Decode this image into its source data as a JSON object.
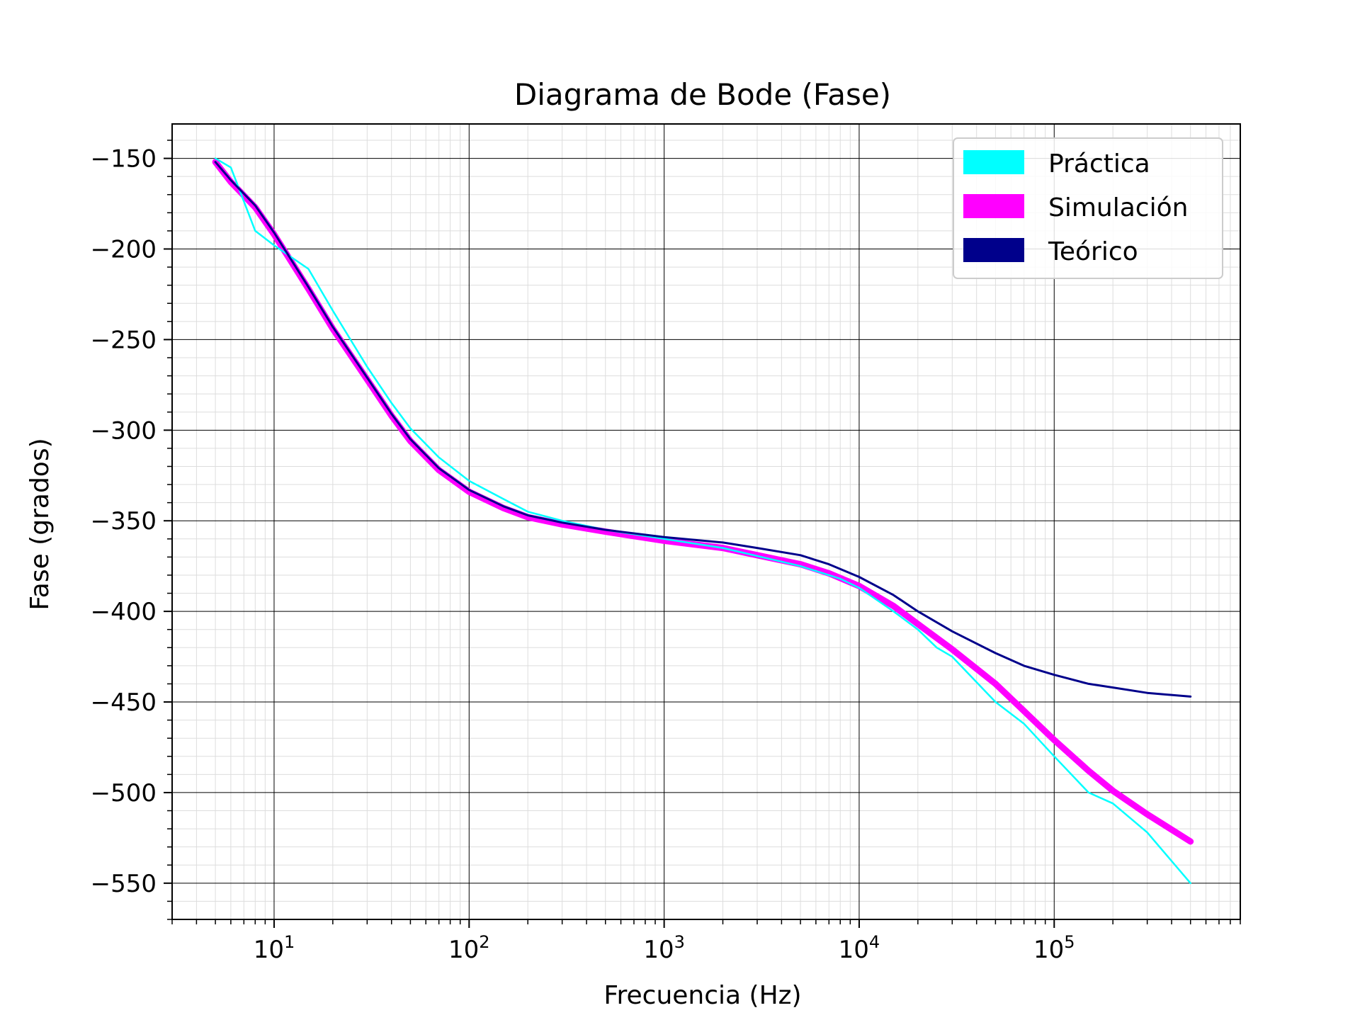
{
  "chart_data": {
    "type": "line",
    "title": "Diagrama de Bode (Fase)",
    "xlabel": "Frecuencia (Hz)",
    "ylabel": "Fase (grados)",
    "xscale": "log",
    "xlim": [
      3,
      900000
    ],
    "ylim": [
      -570,
      -131
    ],
    "yticks": [
      -150,
      -200,
      -250,
      -300,
      -350,
      -400,
      -450,
      -500,
      -550
    ],
    "ytick_labels": [
      "−150",
      "−200",
      "−250",
      "−300",
      "−350",
      "−400",
      "−450",
      "−500",
      "−550"
    ],
    "xticks": [
      {
        "value": 10,
        "base": "10",
        "exp": "1"
      },
      {
        "value": 100,
        "base": "10",
        "exp": "2"
      },
      {
        "value": 1000,
        "base": "10",
        "exp": "3"
      },
      {
        "value": 10000,
        "base": "10",
        "exp": "4"
      },
      {
        "value": 100000,
        "base": "10",
        "exp": "5"
      }
    ],
    "grid": "major and minor",
    "legend_position": "top-right",
    "series": [
      {
        "name": "Práctica",
        "color": "#00ffff",
        "linewidth": "thin",
        "points": [
          [
            5,
            -150
          ],
          [
            6,
            -155
          ],
          [
            8,
            -190
          ],
          [
            10,
            -198
          ],
          [
            15,
            -211
          ],
          [
            20,
            -234
          ],
          [
            30,
            -265
          ],
          [
            40,
            -285
          ],
          [
            50,
            -299
          ],
          [
            70,
            -315
          ],
          [
            100,
            -328
          ],
          [
            150,
            -338
          ],
          [
            200,
            -345
          ],
          [
            300,
            -350
          ],
          [
            500,
            -355
          ],
          [
            1000,
            -360
          ],
          [
            2000,
            -365
          ],
          [
            5000,
            -375
          ],
          [
            8000,
            -382
          ],
          [
            10000,
            -387
          ],
          [
            15000,
            -400
          ],
          [
            20000,
            -410
          ],
          [
            25000,
            -420
          ],
          [
            30000,
            -425
          ],
          [
            50000,
            -450
          ],
          [
            70000,
            -462
          ],
          [
            100000,
            -480
          ],
          [
            150000,
            -500
          ],
          [
            200000,
            -506
          ],
          [
            300000,
            -522
          ],
          [
            500000,
            -550
          ]
        ]
      },
      {
        "name": "Simulación",
        "color": "#ff00ff",
        "linewidth": "thick",
        "points": [
          [
            5,
            -152
          ],
          [
            6,
            -163
          ],
          [
            8,
            -177
          ],
          [
            10,
            -192
          ],
          [
            15,
            -222
          ],
          [
            20,
            -244
          ],
          [
            30,
            -272
          ],
          [
            40,
            -292
          ],
          [
            50,
            -306
          ],
          [
            70,
            -322
          ],
          [
            100,
            -334
          ],
          [
            150,
            -343
          ],
          [
            200,
            -348
          ],
          [
            300,
            -352
          ],
          [
            500,
            -356
          ],
          [
            1000,
            -361
          ],
          [
            2000,
            -365
          ],
          [
            3000,
            -369
          ],
          [
            5000,
            -374
          ],
          [
            7000,
            -379
          ],
          [
            10000,
            -386
          ],
          [
            15000,
            -397
          ],
          [
            20000,
            -407
          ],
          [
            30000,
            -421
          ],
          [
            50000,
            -440
          ],
          [
            70000,
            -455
          ],
          [
            100000,
            -471
          ],
          [
            150000,
            -488
          ],
          [
            200000,
            -499
          ],
          [
            300000,
            -512
          ],
          [
            500000,
            -527
          ]
        ]
      },
      {
        "name": "Teórico",
        "color": "#00008b",
        "linewidth": "medium",
        "points": [
          [
            5,
            -152
          ],
          [
            6,
            -162
          ],
          [
            8,
            -176
          ],
          [
            10,
            -191
          ],
          [
            15,
            -221
          ],
          [
            20,
            -243
          ],
          [
            30,
            -271
          ],
          [
            40,
            -291
          ],
          [
            50,
            -305
          ],
          [
            70,
            -321
          ],
          [
            100,
            -333
          ],
          [
            150,
            -342
          ],
          [
            200,
            -347
          ],
          [
            300,
            -351
          ],
          [
            500,
            -355
          ],
          [
            1000,
            -359
          ],
          [
            2000,
            -362
          ],
          [
            3000,
            -365
          ],
          [
            5000,
            -369
          ],
          [
            7000,
            -374
          ],
          [
            10000,
            -381
          ],
          [
            15000,
            -391
          ],
          [
            20000,
            -400
          ],
          [
            30000,
            -411
          ],
          [
            50000,
            -423
          ],
          [
            70000,
            -430
          ],
          [
            100000,
            -435
          ],
          [
            150000,
            -440
          ],
          [
            200000,
            -442
          ],
          [
            300000,
            -445
          ],
          [
            500000,
            -447
          ]
        ]
      }
    ]
  }
}
